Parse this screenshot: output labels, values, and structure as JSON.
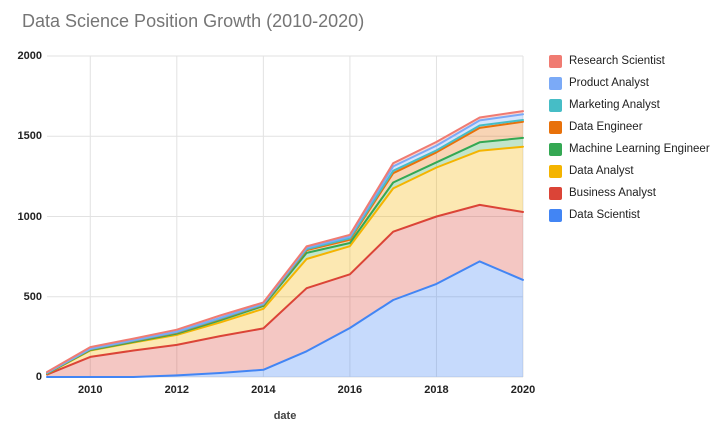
{
  "title": "Data Science Position Growth (2010-2020)",
  "styles": {
    "background": "#ffffff",
    "title_color": "#757575",
    "grid_color": "#e2e2e2",
    "tick_label_color": "#222222",
    "fill_opacity": 0.3,
    "line_width": 2
  },
  "chart_data": {
    "type": "area",
    "stacked": true,
    "title": "Data Science Position Growth (2010-2020)",
    "xlabel": "date",
    "ylabel": "",
    "xlim": [
      2009,
      2020
    ],
    "ylim": [
      0,
      2000
    ],
    "xticks": [
      2010,
      2012,
      2014,
      2016,
      2018,
      2020
    ],
    "yticks": [
      0,
      500,
      1000,
      1500,
      2000
    ],
    "grid": true,
    "legend_position": "right",
    "x": [
      2009,
      2010,
      2011,
      2012,
      2013,
      2014,
      2015,
      2016,
      2017,
      2018,
      2019,
      2020
    ],
    "series": [
      {
        "name": "Data Scientist",
        "color": "#4285F4",
        "values": [
          0,
          0,
          0,
          10,
          25,
          45,
          160,
          305,
          480,
          580,
          720,
          605
        ]
      },
      {
        "name": "Business Analyst",
        "color": "#DB4437",
        "values": [
          15,
          125,
          165,
          190,
          230,
          258,
          393,
          335,
          425,
          420,
          352,
          423
        ]
      },
      {
        "name": "Data Analyst",
        "color": "#F4B400",
        "values": [
          5,
          40,
          50,
          62,
          85,
          122,
          182,
          175,
          270,
          305,
          338,
          407
        ]
      },
      {
        "name": "Machine Learning Engineer",
        "color": "#34A853",
        "values": [
          2,
          3,
          4,
          8,
          13,
          18,
          38,
          20,
          37,
          33,
          52,
          55
        ]
      },
      {
        "name": "Data Engineer",
        "color": "#E8710A",
        "values": [
          2,
          4,
          5,
          6,
          8,
          7,
          17,
          20,
          58,
          62,
          90,
          100
        ]
      },
      {
        "name": "Marketing Analyst",
        "color": "#46BDC6",
        "values": [
          1,
          2,
          2,
          3,
          3,
          3,
          7,
          9,
          15,
          12,
          15,
          11
        ]
      },
      {
        "name": "Product Analyst",
        "color": "#7BAAF7",
        "values": [
          2,
          3,
          3,
          4,
          5,
          4,
          8,
          11,
          27,
          30,
          32,
          36
        ]
      },
      {
        "name": "Research Scientist",
        "color": "#F07B72",
        "values": [
          4,
          9,
          10,
          12,
          14,
          8,
          9,
          11,
          20,
          23,
          18,
          20
        ]
      }
    ],
    "legend_order_top_to_bottom": [
      "Research Scientist",
      "Product Analyst",
      "Marketing Analyst",
      "Data Engineer",
      "Machine Learning Engineer",
      "Data Analyst",
      "Business Analyst",
      "Data Scientist"
    ]
  }
}
